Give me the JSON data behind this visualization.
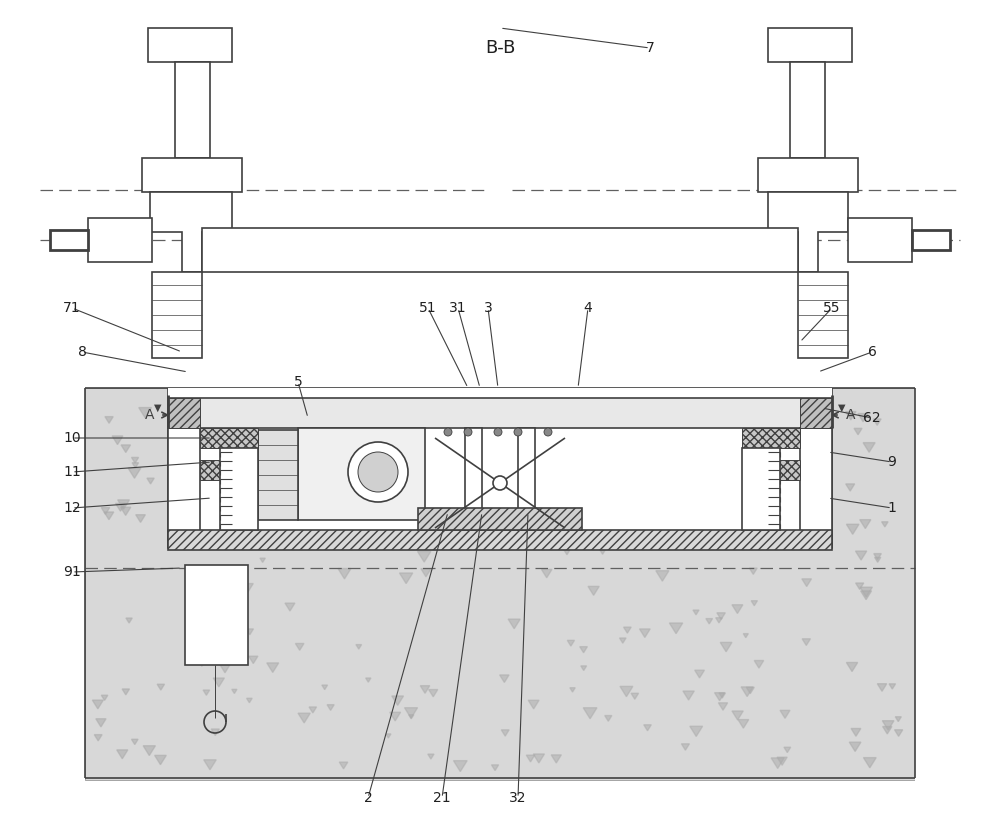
{
  "title": "B-B",
  "background_color": "#ffffff",
  "line_color": "#404040",
  "concrete_color": "#d8d8d8",
  "figsize": [
    10.0,
    8.36
  ],
  "dpi": 100,
  "labels_data": [
    [
      "7",
      650,
      48,
      500,
      28
    ],
    [
      "71",
      72,
      308,
      182,
      352
    ],
    [
      "8",
      82,
      352,
      188,
      372
    ],
    [
      "55",
      832,
      308,
      800,
      342
    ],
    [
      "6",
      872,
      352,
      818,
      372
    ],
    [
      "5",
      298,
      382,
      308,
      418
    ],
    [
      "51",
      428,
      308,
      468,
      388
    ],
    [
      "31",
      458,
      308,
      480,
      388
    ],
    [
      "3",
      488,
      308,
      498,
      388
    ],
    [
      "4",
      588,
      308,
      578,
      388
    ],
    [
      "10",
      72,
      438,
      212,
      438
    ],
    [
      "62",
      872,
      418,
      822,
      408
    ],
    [
      "9",
      892,
      462,
      828,
      452
    ],
    [
      "1",
      892,
      508,
      828,
      498
    ],
    [
      "11",
      72,
      472,
      212,
      462
    ],
    [
      "12",
      72,
      508,
      212,
      498
    ],
    [
      "91",
      72,
      572,
      182,
      568
    ],
    [
      "2",
      368,
      798,
      448,
      512
    ],
    [
      "21",
      442,
      798,
      482,
      512
    ],
    [
      "32",
      518,
      798,
      528,
      512
    ]
  ]
}
